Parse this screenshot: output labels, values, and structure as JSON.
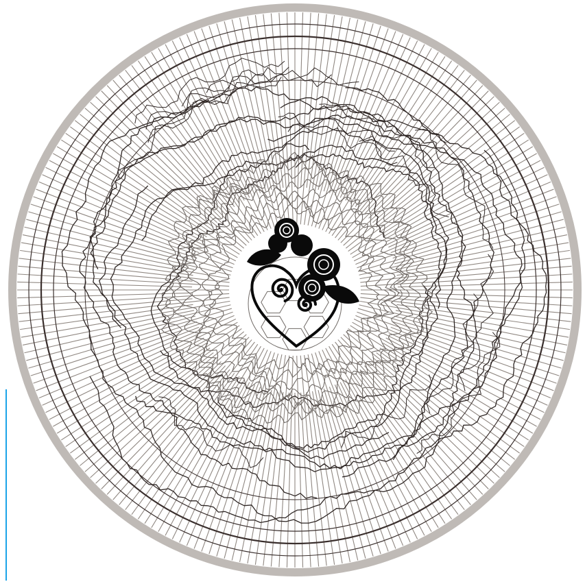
{
  "artwork": {
    "background": "#ffffff",
    "rim_color": "#bfbab6",
    "spoke_color": "#8f8781",
    "ring_color": "#3a2f2d",
    "swirl_color": "#2e2624",
    "lace_color": "#6f6965",
    "emblem_color": "#0a0a0a",
    "spoke_count": 220
  },
  "guide_line": {
    "color": "#1aa3e8"
  }
}
